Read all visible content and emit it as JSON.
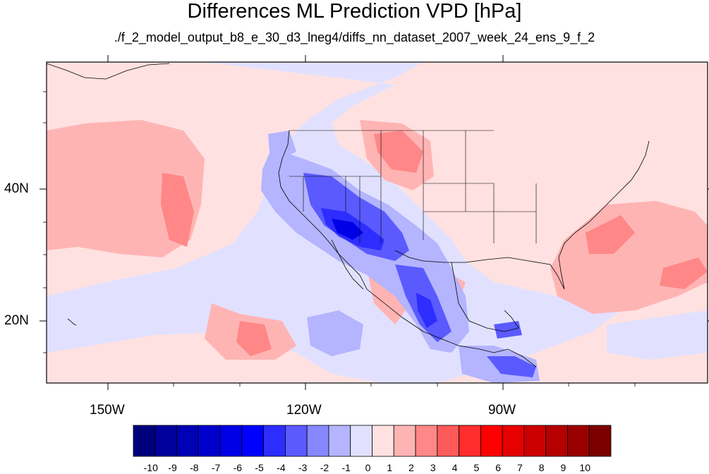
{
  "title": "Differences ML Prediction VPD [hPa]",
  "subtitle": "./f_2_model_output_b8_e_30_d3_lneg4/diffs_nn_dataset_2007_week_24_ens_9_f_2",
  "map": {
    "projection": "cylindrical equidistant",
    "lon_range": [
      -160,
      -61
    ],
    "lat_range": [
      11,
      60
    ],
    "lon_tick_labels": [
      "150W",
      "120W",
      "90W"
    ],
    "lat_tick_labels": [
      "40N",
      "20N"
    ],
    "region": "North America, Eastern Pacific"
  },
  "colorbar": {
    "labels": [
      "-10",
      "-9",
      "-8",
      "-7",
      "-6",
      "-5",
      "-4",
      "-3",
      "-2",
      "-1",
      "0",
      "1",
      "2",
      "3",
      "4",
      "5",
      "6",
      "7",
      "8",
      "9",
      "10"
    ],
    "colors": [
      "#00007d",
      "#00009b",
      "#0000b4",
      "#0000cd",
      "#0000e6",
      "#0000ff",
      "#2d2dff",
      "#5a5aff",
      "#8787ff",
      "#b4b4ff",
      "#e1e1ff",
      "#ffe1e1",
      "#ffb4b4",
      "#ff8787",
      "#ff5a5a",
      "#ff2d2d",
      "#ff0000",
      "#e60000",
      "#cd0000",
      "#b40000",
      "#9b0000",
      "#7d0000"
    ]
  }
}
